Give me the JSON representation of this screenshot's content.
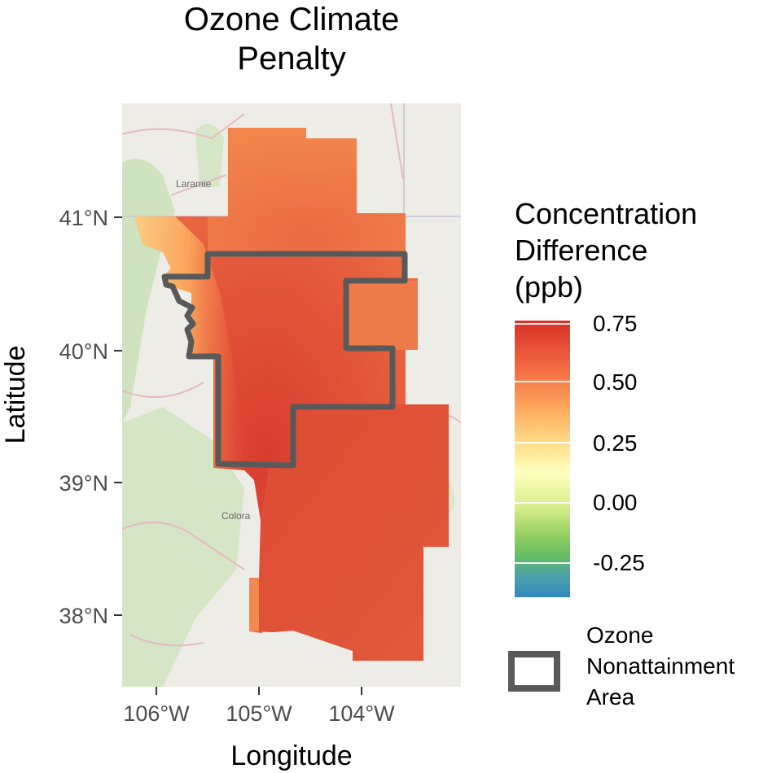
{
  "title_lines": [
    "Ozone Climate",
    "Penalty"
  ],
  "axes": {
    "x_title": "Longitude",
    "y_title": "Latitude",
    "x_ticks": [
      "106°W",
      "105°W",
      "104°W"
    ],
    "y_ticks": [
      "41°N",
      "40°N",
      "39°N",
      "38°N"
    ]
  },
  "basemap_labels": {
    "laramie": "Laramie",
    "colorado_springs": "Colora"
  },
  "legend": {
    "title_lines": [
      "Concentration",
      "Difference",
      "(ppb)"
    ],
    "colorbar_labels": [
      "0.75",
      "0.50",
      "0.25",
      "0.00",
      "-0.25"
    ],
    "palette": [
      "#d73027",
      "#f46d43",
      "#fdae61",
      "#fee08b",
      "#ffffbf",
      "#d9ef8b",
      "#91cf60",
      "#3288bd"
    ],
    "boundary_label_lines": [
      "Ozone",
      "Nonattainment",
      "Area"
    ],
    "boundary_color": "#595959"
  }
}
